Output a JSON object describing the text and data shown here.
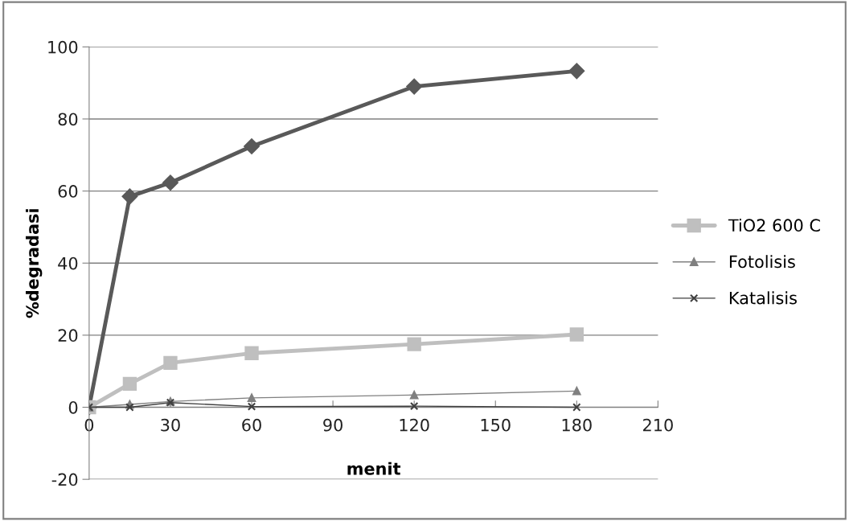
{
  "chart_data": {
    "type": "line",
    "xlabel": "menit",
    "ylabel": "%degradasi",
    "x": [
      0,
      15,
      30,
      60,
      120,
      180
    ],
    "series": [
      {
        "color": "#595959",
        "marker": "diamond",
        "values": [
          0,
          58.5,
          62.3,
          72.4,
          89,
          93.3
        ]
      },
      {
        "name": "TiO2 600 C",
        "color": "#bfbfbf",
        "marker": "square",
        "values": [
          0,
          6.5,
          12.3,
          15,
          17.5,
          20.2
        ]
      },
      {
        "name": "Fotolisis",
        "color": "#808080",
        "marker": "triangle",
        "values": [
          0,
          0.8,
          1.6,
          2.6,
          3.4,
          4.5
        ]
      },
      {
        "name": "Katalisis",
        "color": "#404040",
        "marker": "cross",
        "values": [
          0,
          0,
          1.3,
          0.2,
          0.3,
          0
        ]
      }
    ],
    "xlim": [
      0,
      210
    ],
    "xticks": [
      0,
      30,
      60,
      90,
      120,
      150,
      180,
      210
    ],
    "ylim": [
      -20,
      100
    ],
    "yticks": [
      -20,
      0,
      20,
      40,
      60,
      80,
      100
    ],
    "grid": "y",
    "legend": "right"
  }
}
